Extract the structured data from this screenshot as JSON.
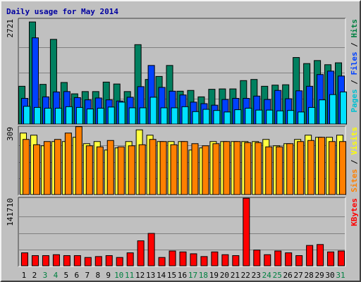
{
  "chart_data": {
    "type": "bar",
    "title": "Daily usage for May 2014",
    "background": "#c0c0c0",
    "x": {
      "categories": [
        "1",
        "2",
        "3",
        "4",
        "5",
        "6",
        "7",
        "8",
        "9",
        "10",
        "11",
        "12",
        "13",
        "14",
        "15",
        "16",
        "17",
        "18",
        "19",
        "20",
        "21",
        "22",
        "23",
        "24",
        "25",
        "26",
        "27",
        "28",
        "29",
        "30",
        "31"
      ],
      "weekend_days": [
        "3",
        "4",
        "10",
        "11",
        "17",
        "18",
        "24",
        "25",
        "31"
      ],
      "weekday_color": "#000000",
      "weekend_color": "#008040"
    },
    "panels": [
      {
        "id": "pages-files-hits",
        "max_label": "2721",
        "ymax": 2721,
        "legend": [
          {
            "text": "Pages",
            "color": "#00c0d0"
          },
          {
            "text": " / ",
            "color": "#000000"
          },
          {
            "text": "Files",
            "color": "#0040ff"
          },
          {
            "text": " / ",
            "color": "#000000"
          },
          {
            "text": "Hits",
            "color": "#008040"
          }
        ],
        "series": [
          {
            "name": "Hits",
            "color": "#008060",
            "values": [
              1000,
              2700,
              1050,
              2240,
              1100,
              800,
              860,
              860,
              1110,
              1060,
              860,
              2100,
              1180,
              1260,
              1550,
              870,
              890,
              720,
              920,
              930,
              930,
              1150,
              1180,
              1000,
              1030,
              1040,
              1760,
              1600,
              1680,
              1570,
              1620
            ]
          },
          {
            "name": "Files",
            "color": "#0040ff",
            "values": [
              680,
              2280,
              720,
              850,
              860,
              700,
              640,
              690,
              640,
              610,
              710,
              990,
              1550,
              970,
              870,
              770,
              580,
              540,
              500,
              650,
              680,
              680,
              740,
              650,
              890,
              670,
              880,
              1000,
              1310,
              1400,
              1270
            ]
          },
          {
            "name": "Pages",
            "color": "#00e0ff",
            "values": [
              470,
              440,
              420,
              420,
              460,
              440,
              400,
              420,
              450,
              580,
              430,
              430,
              710,
              430,
              430,
              460,
              330,
              390,
              360,
              320,
              380,
              420,
              370,
              370,
              350,
              360,
              320,
              440,
              640,
              780,
              850
            ]
          }
        ]
      },
      {
        "id": "sites-visits",
        "max_label": "309",
        "ymax": 309,
        "legend": [
          {
            "text": "Sites",
            "color": "#ff8000"
          },
          {
            "text": " / ",
            "color": "#000000"
          },
          {
            "text": "Visits",
            "color": "#ffff00"
          }
        ],
        "series": [
          {
            "name": "Visits",
            "color": "#ffff40",
            "values": [
              290,
              280,
              230,
              250,
              250,
              270,
              240,
              250,
              210,
              220,
              250,
              305,
              280,
              250,
              250,
              250,
              210,
              220,
              250,
              250,
              250,
              250,
              250,
              260,
              230,
              240,
              260,
              280,
              270,
              270,
              280
            ]
          },
          {
            "name": "Sites",
            "color": "#ff8000",
            "values": [
              260,
              235,
              250,
              260,
              290,
              320,
              230,
              225,
              255,
              225,
              230,
              235,
              260,
              250,
              235,
              250,
              240,
              230,
              240,
              250,
              250,
              245,
              245,
              225,
              225,
              240,
              250,
              255,
              270,
              250,
              250
            ]
          }
        ]
      },
      {
        "id": "kbytes",
        "max_label": "141710",
        "ymax": 141710,
        "legend": [
          {
            "text": "KBytes",
            "color": "#ff0000"
          }
        ],
        "series": [
          {
            "name": "KBytes",
            "color": "#ff0000",
            "values": [
              28000,
              22000,
              22000,
              24000,
              22000,
              22000,
              18000,
              20000,
              22000,
              18000,
              28000,
              54000,
              70000,
              18000,
              32000,
              30000,
              26000,
              20000,
              30000,
              24000,
              22000,
              146000,
              34000,
              24000,
              32000,
              28000,
              22000,
              44000,
              46000,
              30000,
              32000
            ]
          }
        ]
      }
    ]
  }
}
